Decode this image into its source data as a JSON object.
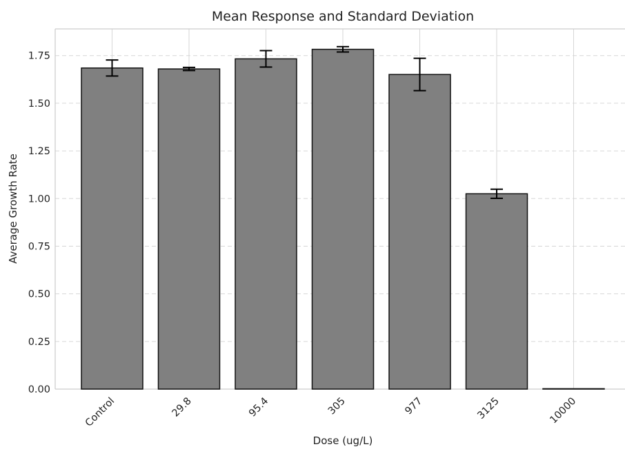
{
  "chart_data": {
    "type": "bar",
    "title": "Mean Response and Standard Deviation",
    "xlabel": "Dose (ug/L)",
    "ylabel": "Average Growth Rate",
    "categories": [
      "Control",
      "29.8",
      "95.4",
      "305",
      "977",
      "3125",
      "10000"
    ],
    "values": [
      1.685,
      1.68,
      1.733,
      1.783,
      1.651,
      1.025,
      0.0
    ],
    "error": [
      0.042,
      0.008,
      0.043,
      0.014,
      0.085,
      0.024,
      0.0
    ],
    "ylim": [
      0,
      1.89
    ],
    "yticks": [
      0.0,
      0.25,
      0.5,
      0.75,
      1.0,
      1.25,
      1.5,
      1.75
    ],
    "ytick_labels": [
      "0.00",
      "0.25",
      "0.50",
      "0.75",
      "1.00",
      "1.25",
      "1.50",
      "1.75"
    ],
    "grid": true,
    "bar_color": "#808080",
    "edge_color": "#111111"
  }
}
